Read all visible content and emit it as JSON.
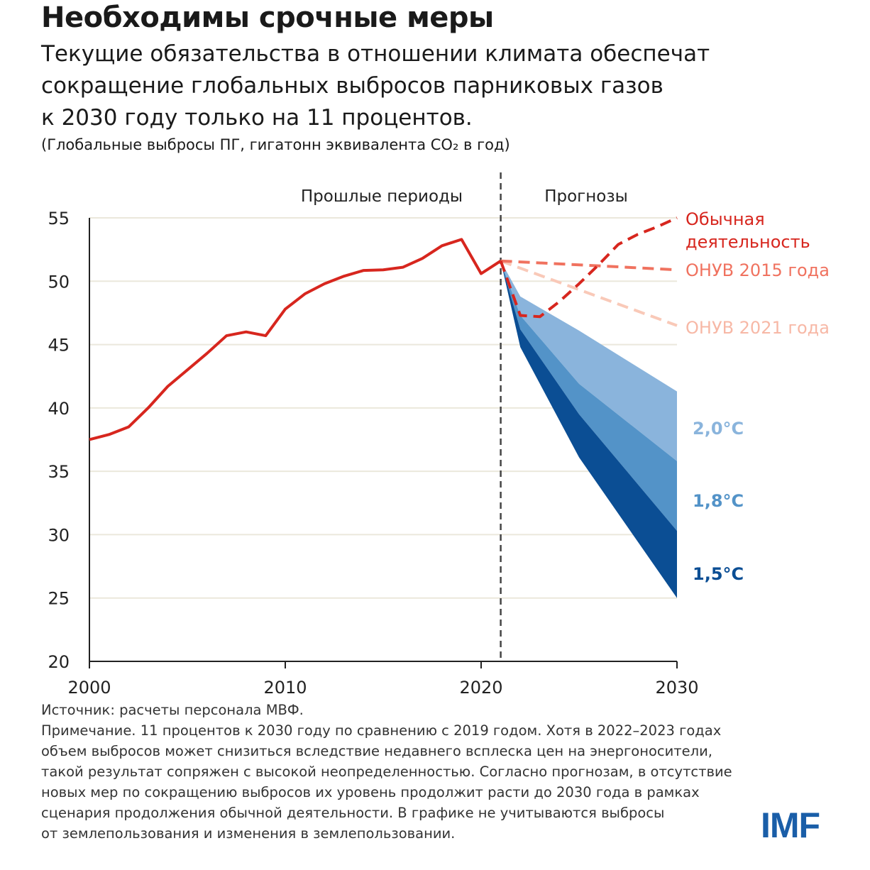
{
  "title": "Необходимы срочные меры",
  "subtitle": "Текущие обязательства в отношении климата обеспечат сокращение глобальных выбросов парниковых газов к 2030 году только на 11 процентов.",
  "subtitle_lines": [
    "Текущие обязательства в отношении климата обеспечат",
    "сокращение глобальных выбросов парниковых газов",
    "к 2030 году только на 11 процентов."
  ],
  "unit": "(Глобальные выбросы ПГ, гигатонн эквивалента CO₂ в год)",
  "notes": {
    "source": "Источник: расчеты персонала МВФ.",
    "note_lines": [
      "Примечание. 11 процентов к 2030 году по сравнению с 2019 годом. Хотя в 2022–2023 годах",
      "объем выбросов может снизиться вследствие недавнего всплеска цен на энергоносители,",
      "такой результат сопряжен с высокой неопределенностью. Согласно прогнозам,  в отсутствие",
      "новых мер по сокращению выбросов их уровень продолжит расти до 2030 года в рамках",
      "сценария продолжения обычной деятельности. В графике не учитываются выбросы",
      "от землепользования и изменения в землепользовании."
    ]
  },
  "logo": "IMF",
  "chart_data": {
    "type": "line",
    "xlim": [
      2000,
      2030
    ],
    "ylim": [
      20,
      55
    ],
    "xticks": [
      2000,
      2010,
      2020,
      2030
    ],
    "yticks": [
      20,
      25,
      30,
      35,
      40,
      45,
      50,
      55
    ],
    "grid": true,
    "divider_year": 2021,
    "region_labels": {
      "past": "Прошлые периоды",
      "forecast": "Прогнозы"
    },
    "series": [
      {
        "name": "historical",
        "color": "#d7261e",
        "style": "solid",
        "x": [
          2000,
          2001,
          2002,
          2003,
          2004,
          2005,
          2006,
          2007,
          2008,
          2009,
          2010,
          2011,
          2012,
          2013,
          2014,
          2015,
          2016,
          2017,
          2018,
          2019,
          2020,
          2021
        ],
        "y": [
          37.5,
          37.9,
          38.5,
          40.0,
          41.7,
          43.0,
          44.3,
          45.7,
          46.0,
          45.7,
          47.8,
          49.0,
          49.8,
          50.4,
          50.85,
          50.9,
          51.1,
          51.8,
          52.8,
          53.3,
          50.6,
          51.6
        ]
      },
      {
        "name": "Обычная деятельность",
        "label_lines": [
          "Обычная",
          "деятельность"
        ],
        "color": "#d7261e",
        "style": "dashed",
        "x": [
          2021,
          2022,
          2023,
          2024,
          2025,
          2026,
          2027,
          2028,
          2029,
          2030
        ],
        "y": [
          51.6,
          47.3,
          47.2,
          48.4,
          49.8,
          51.3,
          52.9,
          53.7,
          54.3,
          55.0
        ]
      },
      {
        "name": "ОНУВ 2015 года",
        "color": "#f0725f",
        "style": "dashed",
        "x": [
          2021,
          2030
        ],
        "y": [
          51.6,
          50.9
        ]
      },
      {
        "name": "ОНУВ 2021 года",
        "color": "#f9c9b8",
        "style": "dashed",
        "x": [
          2021,
          2030
        ],
        "y": [
          51.6,
          46.5
        ]
      }
    ],
    "bands": [
      {
        "name": "2,0°C",
        "color": "#8ab4dc",
        "x": [
          2021,
          2022,
          2025,
          2030
        ],
        "upper": [
          51.6,
          48.8,
          46.1,
          41.3
        ],
        "lower": [
          51.6,
          47.3,
          41.9,
          35.8
        ]
      },
      {
        "name": "1,8°C",
        "color": "#5393c8",
        "x": [
          2021,
          2022,
          2025,
          2030
        ],
        "upper": [
          51.6,
          47.3,
          41.9,
          35.8
        ],
        "lower": [
          51.6,
          46.2,
          39.5,
          30.3
        ]
      },
      {
        "name": "1,5°C",
        "color": "#0b4e94",
        "x": [
          2021,
          2022,
          2025,
          2030
        ],
        "upper": [
          51.6,
          46.2,
          39.5,
          30.3
        ],
        "lower": [
          51.6,
          44.8,
          36.1,
          25.0
        ]
      }
    ]
  }
}
